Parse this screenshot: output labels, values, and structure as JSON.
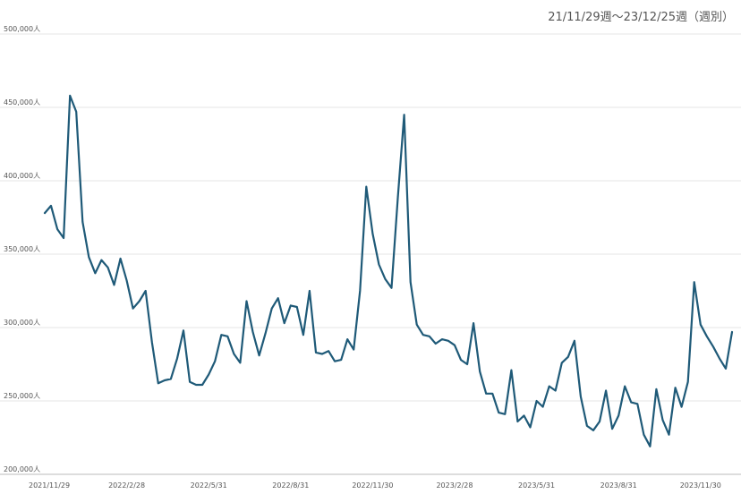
{
  "header": {
    "range_label": "21/11/29週〜23/12/25週（週別）"
  },
  "chart_data": {
    "type": "line",
    "title": "",
    "xlabel": "",
    "ylabel": "",
    "ylim": [
      200000,
      500000
    ],
    "y_ticks": [
      {
        "value": 200000,
        "label": "200,000人"
      },
      {
        "value": 250000,
        "label": "250,000人"
      },
      {
        "value": 300000,
        "label": "300,000人"
      },
      {
        "value": 350000,
        "label": "350,000人"
      },
      {
        "value": 400000,
        "label": "400,000人"
      },
      {
        "value": 450000,
        "label": "450,000人"
      },
      {
        "value": 500000,
        "label": "500,000人"
      }
    ],
    "x_ticks": [
      {
        "index": 0,
        "label": "2021/11/29"
      },
      {
        "index": 13,
        "label": "2022/2/28"
      },
      {
        "index": 26,
        "label": "2022/5/31"
      },
      {
        "index": 39,
        "label": "2022/8/31"
      },
      {
        "index": 52,
        "label": "2022/11/30"
      },
      {
        "index": 65,
        "label": "2023/2/28"
      },
      {
        "index": 78,
        "label": "2023/5/31"
      },
      {
        "index": 91,
        "label": "2023/8/31"
      },
      {
        "index": 104,
        "label": "2023/11/30"
      }
    ],
    "grid": true,
    "color": "#1f5a78",
    "series": [
      {
        "name": "",
        "values": [
          378000,
          383000,
          367000,
          361000,
          458000,
          447000,
          372000,
          348000,
          337000,
          346000,
          341000,
          329000,
          347000,
          332000,
          313000,
          318000,
          325000,
          290000,
          262000,
          264000,
          265000,
          279000,
          298000,
          263000,
          261000,
          261000,
          268000,
          277000,
          295000,
          294000,
          282000,
          276000,
          318000,
          297000,
          281000,
          296000,
          313000,
          320000,
          303000,
          315000,
          314000,
          295000,
          325000,
          283000,
          282000,
          284000,
          277000,
          278000,
          292000,
          285000,
          325000,
          396000,
          364000,
          343000,
          333000,
          327000,
          389000,
          445000,
          331000,
          302000,
          295000,
          294000,
          289000,
          292000,
          291000,
          288000,
          278000,
          275000,
          303000,
          270000,
          255000,
          255000,
          242000,
          241000,
          271000,
          236000,
          240000,
          232000,
          250000,
          246000,
          260000,
          257000,
          276000,
          280000,
          291000,
          253000,
          233000,
          230000,
          236000,
          257000,
          231000,
          240000,
          260000,
          249000,
          248000,
          227000,
          219000,
          258000,
          237000,
          227000,
          259000,
          246000,
          263000,
          331000,
          302000,
          294000,
          287000,
          279000,
          272000,
          297000
        ]
      }
    ]
  }
}
